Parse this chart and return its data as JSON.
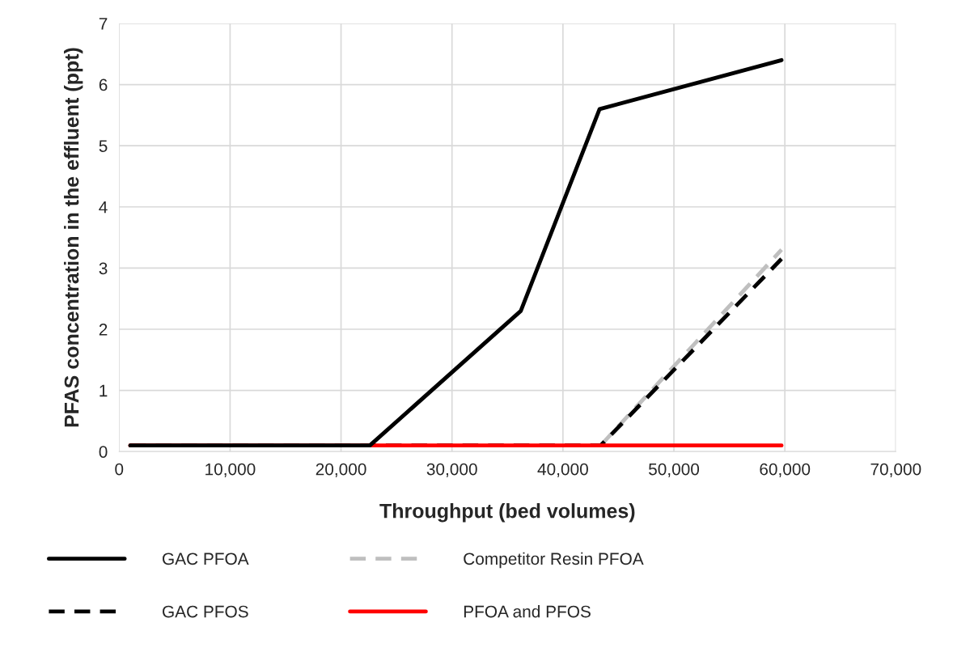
{
  "chart_data": {
    "type": "line",
    "xlabel": "Throughput (bed volumes)",
    "ylabel": "PFAS concentration in the effluent (ppt)",
    "xlim": [
      0,
      70000
    ],
    "xticks": [
      {
        "value": 0,
        "label": "0"
      },
      {
        "value": 10000,
        "label": "10,000"
      },
      {
        "value": 20000,
        "label": "20,000"
      },
      {
        "value": 30000,
        "label": "30,000"
      },
      {
        "value": 40000,
        "label": "40,000"
      },
      {
        "value": 50000,
        "label": "50,000"
      },
      {
        "value": 60000,
        "label": "60,000"
      },
      {
        "value": 70000,
        "label": "70,000"
      }
    ],
    "ylim": [
      0,
      7
    ],
    "yticks": [
      0,
      1,
      2,
      3,
      4,
      5,
      6,
      7
    ],
    "grid": true,
    "legend": "bottom",
    "marker": "none",
    "series": [
      {
        "name": "Competitor Resin PFOA",
        "color": "#bfbfbf",
        "line_style": "dashed",
        "x": [
          43400,
          59700
        ],
        "values": [
          0.1,
          3.3
        ]
      },
      {
        "name": "GAC PFOS",
        "color": "#000000",
        "line_style": "dashed",
        "x": [
          1000,
          43400,
          59700
        ],
        "values": [
          0.1,
          0.1,
          3.15
        ]
      },
      {
        "name": "PFOA and PFOS",
        "color": "#ff0000",
        "line_style": "solid",
        "x": [
          1000,
          59700
        ],
        "values": [
          0.1,
          0.1
        ]
      },
      {
        "name": "GAC PFOA",
        "color": "#000000",
        "line_style": "solid",
        "x": [
          1000,
          22600,
          36200,
          43300,
          59700
        ],
        "values": [
          0.1,
          0.1,
          2.3,
          5.6,
          6.4
        ]
      }
    ]
  }
}
